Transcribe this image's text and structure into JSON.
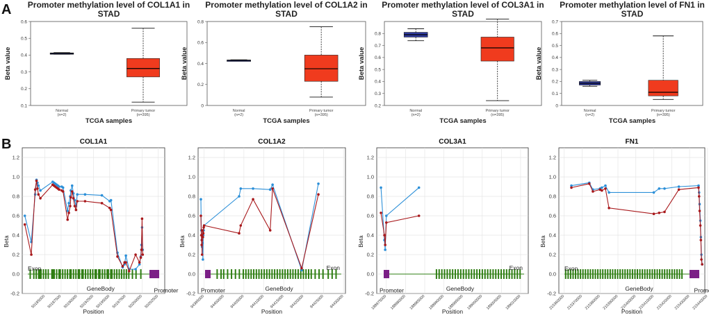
{
  "panel_labels": {
    "a": "A",
    "b": "B"
  },
  "box_common": {
    "ylabel": "Beta value",
    "xlabel": "TCGA samples",
    "categories": [
      {
        "name": "Normal",
        "n": "(n=2)"
      },
      {
        "name": "Primary tumor",
        "n": "(n=395)"
      }
    ]
  },
  "meth_common": {
    "ylabel": "Beta",
    "xlabel": "Position",
    "region_labels": {
      "exon": "Exon",
      "genebody": "GeneBody",
      "promoter": "Promoter"
    }
  },
  "colors": {
    "normal_box": "#2f3a9e",
    "tumor_box": "#f03b1e",
    "line_blue": "#2b8fd8",
    "line_red": "#a8181b",
    "exon": "#2e7d12",
    "promoter": "#7b1f86"
  },
  "chart_data": [
    {
      "type": "box",
      "title": "Promoter methylation level of COL1A1 in STAD",
      "ylim": [
        0.1,
        0.6
      ],
      "yticks": [
        0.1,
        0.2,
        0.3,
        0.4,
        0.5,
        0.6
      ],
      "boxes": [
        {
          "min": 0.405,
          "q1": 0.406,
          "median": 0.41,
          "q3": 0.413,
          "max": 0.415
        },
        {
          "min": 0.12,
          "q1": 0.27,
          "median": 0.32,
          "q3": 0.38,
          "max": 0.56
        }
      ]
    },
    {
      "type": "box",
      "title": "Promoter methylation level of COL1A2 in STAD",
      "ylim": [
        0,
        0.8
      ],
      "yticks": [
        0,
        0.2,
        0.4,
        0.6,
        0.8
      ],
      "boxes": [
        {
          "min": 0.425,
          "q1": 0.427,
          "median": 0.43,
          "q3": 0.433,
          "max": 0.435
        },
        {
          "min": 0.08,
          "q1": 0.23,
          "median": 0.35,
          "q3": 0.48,
          "max": 0.75
        }
      ]
    },
    {
      "type": "box",
      "title": "Promoter methylation level of COL3A1 in STAD",
      "ylim": [
        0.2,
        0.9
      ],
      "yticks": [
        0.2,
        0.3,
        0.4,
        0.5,
        0.6,
        0.7,
        0.8
      ],
      "boxes": [
        {
          "min": 0.74,
          "q1": 0.77,
          "median": 0.79,
          "q3": 0.81,
          "max": 0.84
        },
        {
          "min": 0.24,
          "q1": 0.57,
          "median": 0.68,
          "q3": 0.77,
          "max": 0.92
        }
      ]
    },
    {
      "type": "box",
      "title": "Promoter methylation level of FN1 in STAD",
      "ylim": [
        0,
        0.7
      ],
      "yticks": [
        0,
        0.1,
        0.2,
        0.3,
        0.4,
        0.5,
        0.6,
        0.7
      ],
      "boxes": [
        {
          "min": 0.16,
          "q1": 0.17,
          "median": 0.185,
          "q3": 0.2,
          "max": 0.21
        },
        {
          "min": 0.05,
          "q1": 0.08,
          "median": 0.11,
          "q3": 0.21,
          "max": 0.58
        }
      ]
    },
    {
      "type": "line",
      "title": "COL1A1",
      "ylim": [
        -0.2,
        1.3
      ],
      "yticks": [
        "-0.2",
        "0.0",
        "0.2",
        "0.4",
        "0.6",
        "0.8",
        "1.0",
        "1.2"
      ],
      "xlim": [
        50181500,
        50203500
      ],
      "xticks": [
        50185000,
        50187500,
        50190000,
        50192500,
        50195000,
        50197500,
        50200000,
        50202500
      ],
      "promoter_side": "right",
      "series": [
        {
          "name": "blue",
          "x": [
            50181900,
            50182900,
            50183500,
            50183700,
            50183850,
            50184000,
            50184300,
            50186200,
            50186400,
            50186600,
            50186800,
            50187000,
            50187200,
            50187600,
            50187800,
            50188500,
            50188700,
            50188900,
            50189000,
            50189200,
            50189400,
            50189600,
            50189800,
            50190000,
            50191200,
            50193800,
            50195000,
            50195200,
            50196200,
            50197000,
            50197300,
            50197500,
            50198000,
            50199000,
            50199600,
            50199800,
            50199900,
            50200000,
            50200100
          ],
          "y": [
            0.6,
            0.33,
            0.82,
            0.97,
            0.94,
            0.91,
            0.86,
            0.95,
            0.94,
            0.93,
            0.92,
            0.91,
            0.9,
            0.9,
            0.89,
            0.65,
            0.73,
            0.8,
            0.86,
            0.91,
            0.83,
            0.76,
            0.7,
            0.82,
            0.82,
            0.81,
            0.75,
            0.76,
            0.22,
            0.07,
            0.1,
            0.19,
            0.05,
            0.05,
            0.1,
            0.18,
            0.3,
            0.48,
            0.25
          ]
        },
        {
          "name": "red",
          "x": [
            50181900,
            50182900,
            50183500,
            50183700,
            50183850,
            50184000,
            50184300,
            50186200,
            50186400,
            50186600,
            50186800,
            50187000,
            50187200,
            50187600,
            50187800,
            50188500,
            50188700,
            50188900,
            50189000,
            50189200,
            50189400,
            50189600,
            50189800,
            50190000,
            50191200,
            50193800,
            50195000,
            50195200,
            50196200,
            50197000,
            50197300,
            50197500,
            50198000,
            50199000,
            50199600,
            50199800,
            50199900,
            50200000,
            50200100
          ],
          "y": [
            0.51,
            0.2,
            0.87,
            0.96,
            0.88,
            0.82,
            0.78,
            0.92,
            0.91,
            0.9,
            0.89,
            0.88,
            0.87,
            0.86,
            0.85,
            0.56,
            0.63,
            0.7,
            0.79,
            0.85,
            0.78,
            0.7,
            0.66,
            0.75,
            0.75,
            0.73,
            0.68,
            0.66,
            0.18,
            0.08,
            0.12,
            0.12,
            0.03,
            0.2,
            0.12,
            0.17,
            0.25,
            0.57,
            0.2
          ]
        }
      ]
    },
    {
      "type": "line",
      "title": "COL1A2",
      "ylim": [
        -0.2,
        1.3
      ],
      "yticks": [
        "-0.2",
        "0.0",
        "0.2",
        "0.4",
        "0.6",
        "0.8",
        "1.0",
        "1.2"
      ],
      "xlim": [
        94393500,
        94430500
      ],
      "xticks": [
        94395000,
        94400000,
        94405000,
        94410000,
        94415000,
        94420000,
        94425000,
        94430000
      ],
      "promoter_side": "left",
      "series": [
        {
          "name": "blue",
          "x": [
            94394200,
            94394300,
            94394400,
            94394450,
            94394500,
            94394600,
            94394700,
            94394800,
            94394900,
            94395000,
            94403800,
            94404200,
            94407300,
            94411600,
            94412200,
            94419500,
            94423700
          ],
          "y": [
            0.77,
            0.45,
            0.35,
            0.3,
            0.28,
            0.32,
            0.15,
            0.4,
            0.45,
            0.5,
            0.8,
            0.88,
            0.88,
            0.87,
            0.92,
            0.04,
            0.93
          ]
        },
        {
          "name": "red",
          "x": [
            94394200,
            94394300,
            94394400,
            94394450,
            94394500,
            94394600,
            94394700,
            94394800,
            94394900,
            94395000,
            94403800,
            94404200,
            94407300,
            94411600,
            94412200,
            94419500,
            94423700
          ],
          "y": [
            0.6,
            0.4,
            0.3,
            0.35,
            0.2,
            0.45,
            0.38,
            0.42,
            0.48,
            0.5,
            0.42,
            0.5,
            0.77,
            0.45,
            0.88,
            0.06,
            0.82
          ]
        }
      ]
    },
    {
      "type": "line",
      "title": "COL3A1",
      "ylim": [
        -0.2,
        1.3
      ],
      "yticks": [
        "-0.2",
        "0.0",
        "0.2",
        "0.4",
        "0.6",
        "0.8",
        "1.0",
        "1.2"
      ],
      "xlim": [
        188972500,
        189012000
      ],
      "xticks": [
        188975000,
        188980000,
        188985000,
        188990000,
        188995000,
        189000000,
        189005000,
        189010000
      ],
      "promoter_side": "left",
      "series": [
        {
          "name": "blue",
          "x": [
            188973600,
            188974500,
            188974700,
            188975000,
            188983500
          ],
          "y": [
            0.89,
            0.35,
            0.25,
            0.6,
            0.89
          ]
        },
        {
          "name": "red",
          "x": [
            188973600,
            188974500,
            188974700,
            188975000,
            188983500
          ],
          "y": [
            0.63,
            0.4,
            0.3,
            0.53,
            0.6
          ]
        }
      ]
    },
    {
      "type": "line",
      "title": "FN1",
      "ylim": [
        -0.2,
        1.3
      ],
      "yticks": [
        "-0.2",
        "0.0",
        "0.2",
        "0.4",
        "0.6",
        "0.8",
        "1.0",
        "1.2"
      ],
      "xlim": [
        215357000,
        215438500
      ],
      "xticks": [
        215360000,
        215370000,
        215380000,
        215390000,
        215400000,
        215410000,
        215420000,
        215430000,
        215440000
      ],
      "promoter_side": "right",
      "series": [
        {
          "name": "blue",
          "x": [
            215364000,
            215374000,
            215376000,
            215380000,
            215381000,
            215383000,
            215385000,
            215410000,
            215413000,
            215416000,
            215424000,
            215435000,
            215435300,
            215435600,
            215436000,
            215436300,
            215436600,
            215437000
          ],
          "y": [
            0.91,
            0.94,
            0.87,
            0.88,
            0.89,
            0.91,
            0.84,
            0.84,
            0.88,
            0.88,
            0.9,
            0.91,
            0.84,
            0.72,
            0.55,
            0.38,
            0.2,
            0.1
          ]
        },
        {
          "name": "red",
          "x": [
            215364000,
            215374000,
            215376000,
            215380000,
            215381000,
            215383000,
            215385000,
            215410000,
            215413000,
            215416000,
            215424000,
            215435000,
            215435300,
            215435600,
            215436000,
            215436300,
            215436600,
            215437000
          ],
          "y": [
            0.89,
            0.93,
            0.85,
            0.87,
            0.86,
            0.88,
            0.68,
            0.62,
            0.63,
            0.64,
            0.87,
            0.89,
            0.8,
            0.65,
            0.5,
            0.35,
            0.15,
            0.1
          ]
        }
      ]
    }
  ]
}
